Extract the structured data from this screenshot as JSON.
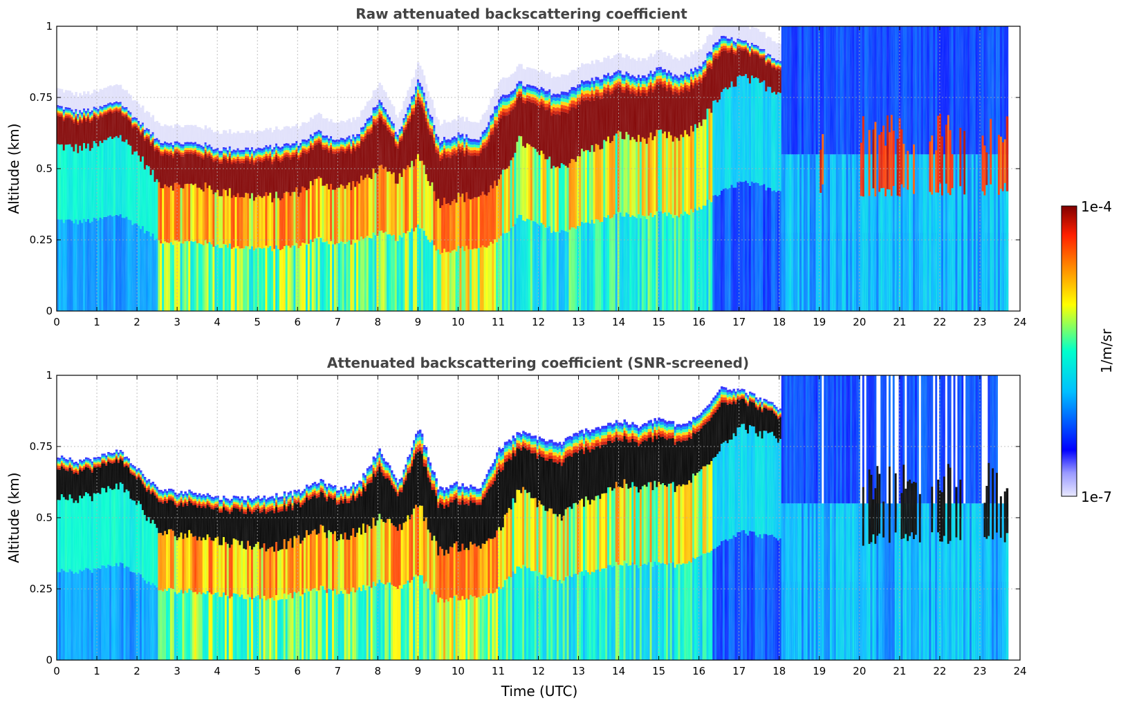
{
  "chart_data": [
    {
      "type": "heatmap",
      "title": "Raw attenuated backscattering coefficient",
      "xlabel": "",
      "ylabel": "Altitude (km)",
      "xlim": [
        0,
        24
      ],
      "ylim": [
        0,
        1
      ],
      "xticks": [
        "0",
        "1",
        "2",
        "3",
        "4",
        "5",
        "6",
        "7",
        "8",
        "9",
        "10",
        "11",
        "12",
        "13",
        "14",
        "15",
        "16",
        "17",
        "18",
        "19",
        "20",
        "21",
        "22",
        "23",
        "24"
      ],
      "yticks": [
        "0",
        "0.25",
        "0.5",
        "0.75",
        "1"
      ],
      "grid": true,
      "screened": false,
      "cloud_base_km": [
        [
          0.0,
          0.58
        ],
        [
          0.5,
          0.57
        ],
        [
          1.0,
          0.58
        ],
        [
          1.5,
          0.62
        ],
        [
          2.0,
          0.55
        ],
        [
          2.5,
          0.45
        ],
        [
          3.0,
          0.44
        ],
        [
          3.5,
          0.44
        ],
        [
          4.0,
          0.42
        ],
        [
          4.5,
          0.41
        ],
        [
          5.0,
          0.4
        ],
        [
          5.5,
          0.4
        ],
        [
          6.0,
          0.42
        ],
        [
          6.5,
          0.46
        ],
        [
          7.0,
          0.43
        ],
        [
          7.5,
          0.45
        ],
        [
          8.0,
          0.5
        ],
        [
          8.5,
          0.46
        ],
        [
          9.0,
          0.55
        ],
        [
          9.5,
          0.38
        ],
        [
          10.0,
          0.4
        ],
        [
          10.5,
          0.4
        ],
        [
          11.0,
          0.45
        ],
        [
          11.5,
          0.6
        ],
        [
          12.0,
          0.55
        ],
        [
          12.5,
          0.5
        ],
        [
          13.0,
          0.55
        ],
        [
          13.5,
          0.58
        ],
        [
          14.0,
          0.62
        ],
        [
          14.5,
          0.6
        ],
        [
          15.0,
          0.62
        ],
        [
          15.5,
          0.6
        ],
        [
          16.0,
          0.66
        ],
        [
          16.5,
          0.75
        ],
        [
          17.0,
          0.82
        ],
        [
          17.5,
          0.8
        ],
        [
          18.0,
          0.77
        ]
      ],
      "cloud_top_km": [
        [
          0.0,
          0.72
        ],
        [
          0.5,
          0.7
        ],
        [
          1.0,
          0.71
        ],
        [
          1.5,
          0.74
        ],
        [
          2.0,
          0.67
        ],
        [
          2.5,
          0.6
        ],
        [
          3.0,
          0.59
        ],
        [
          3.5,
          0.59
        ],
        [
          4.0,
          0.57
        ],
        [
          4.5,
          0.57
        ],
        [
          5.0,
          0.57
        ],
        [
          5.5,
          0.58
        ],
        [
          6.0,
          0.59
        ],
        [
          6.5,
          0.63
        ],
        [
          7.0,
          0.6
        ],
        [
          7.5,
          0.62
        ],
        [
          8.0,
          0.74
        ],
        [
          8.5,
          0.62
        ],
        [
          9.0,
          0.82
        ],
        [
          9.5,
          0.6
        ],
        [
          10.0,
          0.62
        ],
        [
          10.5,
          0.6
        ],
        [
          11.0,
          0.74
        ],
        [
          11.5,
          0.8
        ],
        [
          12.0,
          0.78
        ],
        [
          12.5,
          0.76
        ],
        [
          13.0,
          0.8
        ],
        [
          13.5,
          0.82
        ],
        [
          14.0,
          0.84
        ],
        [
          14.5,
          0.82
        ],
        [
          15.0,
          0.85
        ],
        [
          15.5,
          0.82
        ],
        [
          16.0,
          0.86
        ],
        [
          16.5,
          0.96
        ],
        [
          17.0,
          0.95
        ],
        [
          17.5,
          0.92
        ],
        [
          18.0,
          0.88
        ]
      ],
      "scattered_cloud_periods_utc": [
        [
          19.0,
          19.1
        ],
        [
          20.0,
          21.5
        ],
        [
          21.7,
          22.6
        ],
        [
          23.0,
          23.7
        ]
      ],
      "data_end_utc": 23.7
    },
    {
      "type": "heatmap",
      "title": "Attenuated backscattering coefficient (SNR-screened)",
      "xlabel": "Time (UTC)",
      "ylabel": "Altitude (km)",
      "xlim": [
        0,
        24
      ],
      "ylim": [
        0,
        1
      ],
      "xticks": [
        "0",
        "1",
        "2",
        "3",
        "4",
        "5",
        "6",
        "7",
        "8",
        "9",
        "10",
        "11",
        "12",
        "13",
        "14",
        "15",
        "16",
        "17",
        "18",
        "19",
        "20",
        "21",
        "22",
        "23",
        "24"
      ],
      "yticks": [
        "0",
        "0.25",
        "0.5",
        "0.75",
        "1"
      ],
      "grid": true,
      "screened": true,
      "data_end_utc": 23.7
    }
  ],
  "colorbar": {
    "min_label": "1e-7",
    "max_label": "1e-4",
    "label": "1/m/sr",
    "scale": "log",
    "colormap": [
      "#e8e8ff",
      "#0000ff",
      "#00bfff",
      "#00ffcc",
      "#ffff00",
      "#ff8000",
      "#ff2000",
      "#800000"
    ]
  }
}
